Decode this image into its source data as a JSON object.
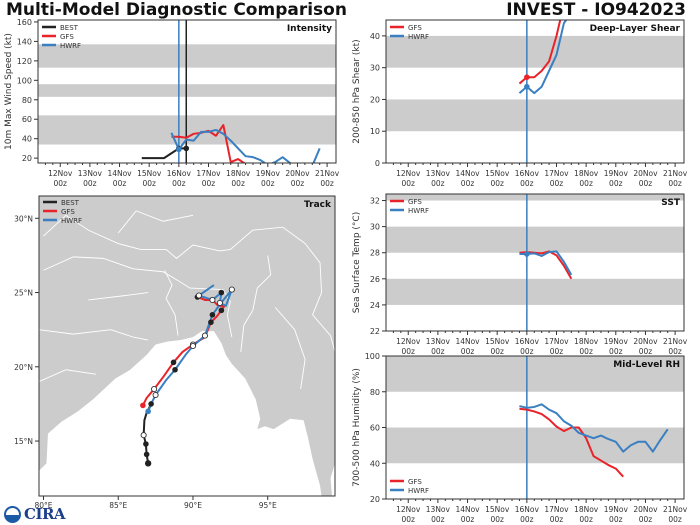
{
  "header": {
    "title": "Multi-Model Diagnostic Comparison",
    "storm": "INVEST - IO942023"
  },
  "logo": {
    "text": "CIRA"
  },
  "colors": {
    "BEST": "#222222",
    "GFS": "#e8232a",
    "HWRF": "#3a7fc1",
    "band": "#cccccc",
    "land": "#cccccc"
  },
  "time_axis": {
    "ticks": [
      {
        "day": 12,
        "label1": "12Nov",
        "label2": "00z"
      },
      {
        "day": 13,
        "label1": "13Nov",
        "label2": "00z"
      },
      {
        "day": 14,
        "label1": "14Nov",
        "label2": "00z"
      },
      {
        "day": 15,
        "label1": "15Nov",
        "label2": "00z"
      },
      {
        "day": 16,
        "label1": "16Nov",
        "label2": "00z"
      },
      {
        "day": 17,
        "label1": "17Nov",
        "label2": "00z"
      },
      {
        "day": 18,
        "label1": "18Nov",
        "label2": "00z"
      },
      {
        "day": 19,
        "label1": "19Nov",
        "label2": "00z"
      },
      {
        "day": 20,
        "label1": "20Nov",
        "label2": "00z"
      },
      {
        "day": 21,
        "label1": "21Nov",
        "label2": "00z"
      }
    ],
    "range": [
      11.25,
      21.3
    ]
  },
  "chart_data": [
    {
      "id": "intensity",
      "type": "line",
      "title": "Intensity",
      "ylabel": "10m Max Wind Speed (kt)",
      "ylim": [
        15,
        162
      ],
      "yticks": [
        20,
        40,
        60,
        80,
        100,
        120,
        140,
        160
      ],
      "bands": [
        [
          34,
          64
        ],
        [
          83,
          96
        ],
        [
          113,
          137
        ]
      ],
      "vlines": [
        {
          "x": 16.0,
          "color": "HWRF"
        },
        {
          "x": 16.25,
          "color": "BEST"
        }
      ],
      "legend": [
        "BEST",
        "GFS",
        "HWRF"
      ],
      "legend_position": "top-left",
      "series": [
        {
          "name": "BEST",
          "x": [
            14.75,
            15.0,
            15.25,
            15.5,
            15.75,
            16.0,
            16.25
          ],
          "y": [
            20,
            20,
            20,
            20,
            25,
            30,
            30
          ],
          "markers": [
            16.0,
            16.25
          ]
        },
        {
          "name": "GFS",
          "x": [
            15.75,
            16.0,
            16.25,
            16.5,
            16.75,
            17.0,
            17.25,
            17.5,
            17.75,
            18.0,
            18.25
          ],
          "y": [
            42,
            42,
            41,
            45,
            46,
            48,
            43,
            54,
            16,
            19,
            14
          ]
        },
        {
          "name": "HWRF",
          "x": [
            15.75,
            16.0,
            16.25,
            16.5,
            16.75,
            17.0,
            17.25,
            17.5,
            17.75,
            18.0,
            18.25,
            18.5,
            18.75,
            19.0,
            19.25,
            19.5,
            19.75,
            20.0,
            20.25,
            20.5,
            20.75
          ],
          "y": [
            46,
            29,
            39,
            38,
            47,
            47,
            49,
            45,
            38,
            30,
            22,
            21,
            18,
            13,
            16,
            21,
            15,
            11,
            10,
            12,
            30
          ],
          "markers": [
            16.0
          ]
        }
      ]
    },
    {
      "id": "shear",
      "type": "line",
      "title": "Deep-Layer Shear",
      "ylabel": "200-850 hPa Shear (kt)",
      "ylim": [
        0,
        45
      ],
      "yticks": [
        0,
        10,
        20,
        30,
        40
      ],
      "bands": [
        [
          10,
          20
        ],
        [
          30,
          40
        ]
      ],
      "vlines": [
        {
          "x": 16.0,
          "color": "HWRF"
        }
      ],
      "legend": [
        "GFS",
        "HWRF"
      ],
      "legend_position": "top-left",
      "series": [
        {
          "name": "GFS",
          "x": [
            15.75,
            16.0,
            16.25,
            16.5,
            16.75,
            17.0,
            17.15
          ],
          "y": [
            25,
            27,
            27,
            29,
            32,
            40,
            46
          ],
          "markers": [
            16.0
          ]
        },
        {
          "name": "HWRF",
          "x": [
            15.75,
            16.0,
            16.25,
            16.5,
            16.75,
            17.0,
            17.25,
            17.4
          ],
          "y": [
            22,
            24,
            22,
            24,
            29,
            34,
            44,
            46
          ],
          "markers": [
            16.0
          ]
        }
      ]
    },
    {
      "id": "sst",
      "type": "line",
      "title": "SST",
      "ylabel": "Sea Surface Temp (°C)",
      "ylim": [
        22,
        32.5
      ],
      "yticks": [
        22,
        24,
        26,
        28,
        30,
        32
      ],
      "bands": [
        [
          24,
          26
        ],
        [
          28,
          30
        ],
        [
          32,
          34
        ]
      ],
      "vlines": [
        {
          "x": 16.0,
          "color": "HWRF"
        }
      ],
      "legend": [
        "GFS",
        "HWRF"
      ],
      "legend_position": "top-left",
      "series": [
        {
          "name": "GFS",
          "x": [
            15.75,
            16.0,
            16.25,
            16.5,
            16.75,
            17.0,
            17.25,
            17.5
          ],
          "y": [
            28.0,
            28.05,
            28.0,
            27.95,
            28.1,
            27.8,
            27.0,
            26.0
          ]
        },
        {
          "name": "HWRF",
          "x": [
            15.75,
            16.0,
            16.25,
            16.5,
            16.75,
            17.0,
            17.25,
            17.5
          ],
          "y": [
            27.9,
            27.9,
            27.95,
            27.75,
            28.05,
            28.1,
            27.3,
            26.3
          ],
          "markers": [
            16.0
          ]
        }
      ]
    },
    {
      "id": "rh",
      "type": "line",
      "title": "Mid-Level RH",
      "ylabel": "700-500 hPa Humidity (%)",
      "ylim": [
        20,
        100
      ],
      "yticks": [
        20,
        40,
        60,
        80,
        100
      ],
      "bands": [
        [
          40,
          60
        ],
        [
          80,
          100
        ]
      ],
      "vlines": [
        {
          "x": 16.0,
          "color": "HWRF"
        }
      ],
      "legend": [
        "GFS",
        "HWRF"
      ],
      "legend_position": "bottom-left",
      "series": [
        {
          "name": "GFS",
          "x": [
            15.75,
            16.0,
            16.25,
            16.5,
            16.75,
            17.0,
            17.25,
            17.5,
            17.75,
            18.0,
            18.25,
            18.5,
            18.75,
            19.0,
            19.25
          ],
          "y": [
            70.5,
            70,
            69,
            67.5,
            64.5,
            60.5,
            58,
            60,
            60,
            54,
            44,
            41.5,
            39,
            37,
            32.5
          ]
        },
        {
          "name": "HWRF",
          "x": [
            15.75,
            16.0,
            16.25,
            16.5,
            16.75,
            17.0,
            17.25,
            17.5,
            17.75,
            18.0,
            18.25,
            18.5,
            18.75,
            19.0,
            19.25,
            19.5,
            19.75,
            20.0,
            20.25,
            20.5,
            20.75
          ],
          "y": [
            72,
            71,
            71.5,
            73,
            70,
            68,
            63.5,
            61,
            57,
            55.5,
            54,
            55.5,
            53.5,
            52,
            46.5,
            50,
            52,
            52,
            46.5,
            53,
            59
          ]
        }
      ]
    },
    {
      "id": "track",
      "type": "line",
      "title": "Track",
      "xlim": [
        79.7,
        99.5
      ],
      "ylim": [
        11.3,
        31.5
      ],
      "xticks": [
        {
          "v": 80,
          "label": "80°E"
        },
        {
          "v": 85,
          "label": "85°E"
        },
        {
          "v": 90,
          "label": "90°E"
        },
        {
          "v": 95,
          "label": "95°E"
        }
      ],
      "yticks": [
        {
          "v": 15,
          "label": "15°N"
        },
        {
          "v": 20,
          "label": "20°N"
        },
        {
          "v": 25,
          "label": "25°N"
        },
        {
          "v": 30,
          "label": "30°N"
        }
      ],
      "legend": [
        "BEST",
        "GFS",
        "HWRF"
      ],
      "legend_position": "top-left",
      "series": [
        {
          "name": "BEST",
          "lon": [
            87.0,
            86.9,
            86.85,
            86.7,
            86.75,
            86.9,
            87.1,
            87.2
          ],
          "lat": [
            13.5,
            14.1,
            14.8,
            15.4,
            16.4,
            16.9,
            17.3,
            17.5
          ],
          "filled": [
            0,
            1,
            1,
            0,
            0,
            0,
            0,
            1
          ],
          "open": [
            0,
            0,
            0,
            1,
            0,
            0,
            0,
            0
          ]
        },
        {
          "name": "GFS",
          "lon": [
            86.65,
            86.9,
            87.4,
            88.0,
            88.7,
            89.3,
            90.0,
            90.8,
            91.2,
            91.6,
            91.9,
            92.1,
            91.7,
            91.3,
            90.8,
            90.3
          ],
          "lat": [
            17.4,
            17.9,
            18.5,
            19.3,
            20.3,
            21.0,
            21.5,
            22.0,
            23.0,
            23.4,
            23.8,
            24.1,
            24.1,
            24.5,
            24.5,
            24.7
          ],
          "filled_idx": [
            4,
            8,
            10,
            15
          ],
          "open_idx": [
            2,
            6
          ]
        },
        {
          "name": "HWRF",
          "lon": [
            87.0,
            87.3,
            87.5,
            88.2,
            88.8,
            89.5,
            90.0,
            90.8,
            91.3,
            91.8,
            92.6,
            92.2,
            91.8,
            91.9,
            91.3,
            90.4,
            91.4
          ],
          "lat": [
            17.0,
            17.7,
            18.1,
            19.1,
            19.8,
            20.8,
            21.4,
            22.1,
            23.5,
            24.2,
            25.2,
            24.1,
            24.3,
            25.0,
            24.5,
            24.8,
            25.5
          ],
          "filled_idx": [
            4,
            8,
            13
          ],
          "open_idx": [
            2,
            6,
            7,
            10,
            12,
            14,
            15
          ]
        }
      ]
    }
  ]
}
